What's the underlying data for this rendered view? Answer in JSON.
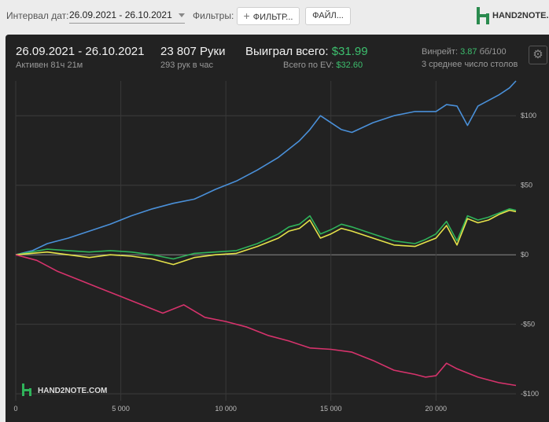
{
  "toolbar": {
    "date_label": "Интервал дат:",
    "date_value": "26.09.2021 - 26.10.2021",
    "filters_label": "Фильтры:",
    "filter_button": "ФИЛЬТР...",
    "file_button": "ФАЙЛ..."
  },
  "brand": {
    "name": "HAND2NOTE.COM",
    "color": "#2a8a4e"
  },
  "summary": {
    "range": "26.09.2021 - 26.10.2021",
    "active": "Активен 81ч 21м",
    "hands": "23 807 Руки",
    "hands_per_hour": "293 рук в час",
    "won_label": "Выиграл всего:",
    "won_value": "$31.99",
    "ev_label": "Всего по EV:",
    "ev_value": "$32.60",
    "winrate_label": "Винрейт:",
    "winrate_value": "3.87",
    "winrate_unit": "бб/100",
    "tables": "3 среднее число столов"
  },
  "icons": {
    "settings": "gear-icon",
    "filter_add": "plus-icon",
    "dropdown": "chevron-down-icon"
  },
  "chart_data": {
    "type": "line",
    "xlim": [
      0,
      23807
    ],
    "ylim": [
      -105,
      125
    ],
    "x_ticks": [
      0,
      5000,
      10000,
      15000,
      20000
    ],
    "x_tick_labels": [
      "0",
      "5 000",
      "10 000",
      "15 000",
      "20 000"
    ],
    "y_ticks": [
      100,
      50,
      0,
      -50,
      -100
    ],
    "y_tick_labels": [
      "$100",
      "$50",
      "$0",
      "-$50",
      "-$100"
    ],
    "grid": true,
    "series": [
      {
        "color": "#4a90d9",
        "x": [
          0,
          800,
          1500,
          2500,
          3500,
          4500,
          5500,
          6500,
          7500,
          8500,
          9500,
          10500,
          11500,
          12500,
          13000,
          13500,
          14000,
          14500,
          15000,
          15500,
          16000,
          17000,
          18000,
          19000,
          20000,
          20500,
          21000,
          21500,
          22000,
          22500,
          23000,
          23500,
          23807
        ],
        "y": [
          0,
          3,
          8,
          12,
          17,
          22,
          28,
          33,
          37,
          40,
          47,
          53,
          61,
          70,
          76,
          82,
          90,
          100,
          95,
          90,
          88,
          95,
          100,
          103,
          103,
          108,
          107,
          93,
          107,
          111,
          115,
          120,
          125
        ]
      },
      {
        "color": "#2fb35a",
        "x": [
          0,
          1500,
          2500,
          3500,
          4500,
          5500,
          6500,
          7500,
          8500,
          9500,
          10500,
          11500,
          12500,
          13000,
          13500,
          14000,
          14500,
          15000,
          15500,
          16000,
          17000,
          18000,
          19000,
          19500,
          20000,
          20500,
          21000,
          21500,
          22000,
          22500,
          23000,
          23500,
          23807
        ],
        "y": [
          0,
          4,
          3,
          2,
          3,
          2,
          0,
          -3,
          1,
          2,
          3,
          8,
          15,
          20,
          22,
          28,
          15,
          18,
          22,
          20,
          15,
          10,
          8,
          11,
          15,
          24,
          10,
          28,
          25,
          27,
          30,
          33,
          32
        ]
      },
      {
        "color": "#e6e34a",
        "x": [
          0,
          1500,
          2500,
          3500,
          4500,
          5500,
          6500,
          7500,
          8500,
          9500,
          10500,
          11500,
          12500,
          13000,
          13500,
          14000,
          14500,
          15000,
          15500,
          16000,
          17000,
          18000,
          19000,
          19500,
          20000,
          20500,
          21000,
          21500,
          22000,
          22500,
          23000,
          23500,
          23807
        ],
        "y": [
          0,
          2,
          0,
          -2,
          0,
          -1,
          -3,
          -7,
          -2,
          0,
          1,
          6,
          12,
          17,
          19,
          25,
          12,
          15,
          19,
          17,
          12,
          7,
          6,
          9,
          12,
          21,
          7,
          26,
          23,
          25,
          29,
          32,
          31
        ]
      },
      {
        "color": "#d6336c",
        "x": [
          0,
          1000,
          2000,
          3000,
          4000,
          5000,
          6000,
          7000,
          8000,
          9000,
          10000,
          11000,
          12000,
          13000,
          14000,
          15000,
          16000,
          17000,
          18000,
          19000,
          19500,
          20000,
          20500,
          21000,
          21500,
          22000,
          22500,
          23000,
          23807
        ],
        "y": [
          0,
          -4,
          -12,
          -18,
          -24,
          -30,
          -36,
          -42,
          -36,
          -45,
          -48,
          -52,
          -58,
          -62,
          -67,
          -68,
          -70,
          -76,
          -83,
          -86,
          -88,
          -87,
          -78,
          -82,
          -85,
          -88,
          -90,
          -92,
          -94
        ]
      }
    ]
  }
}
